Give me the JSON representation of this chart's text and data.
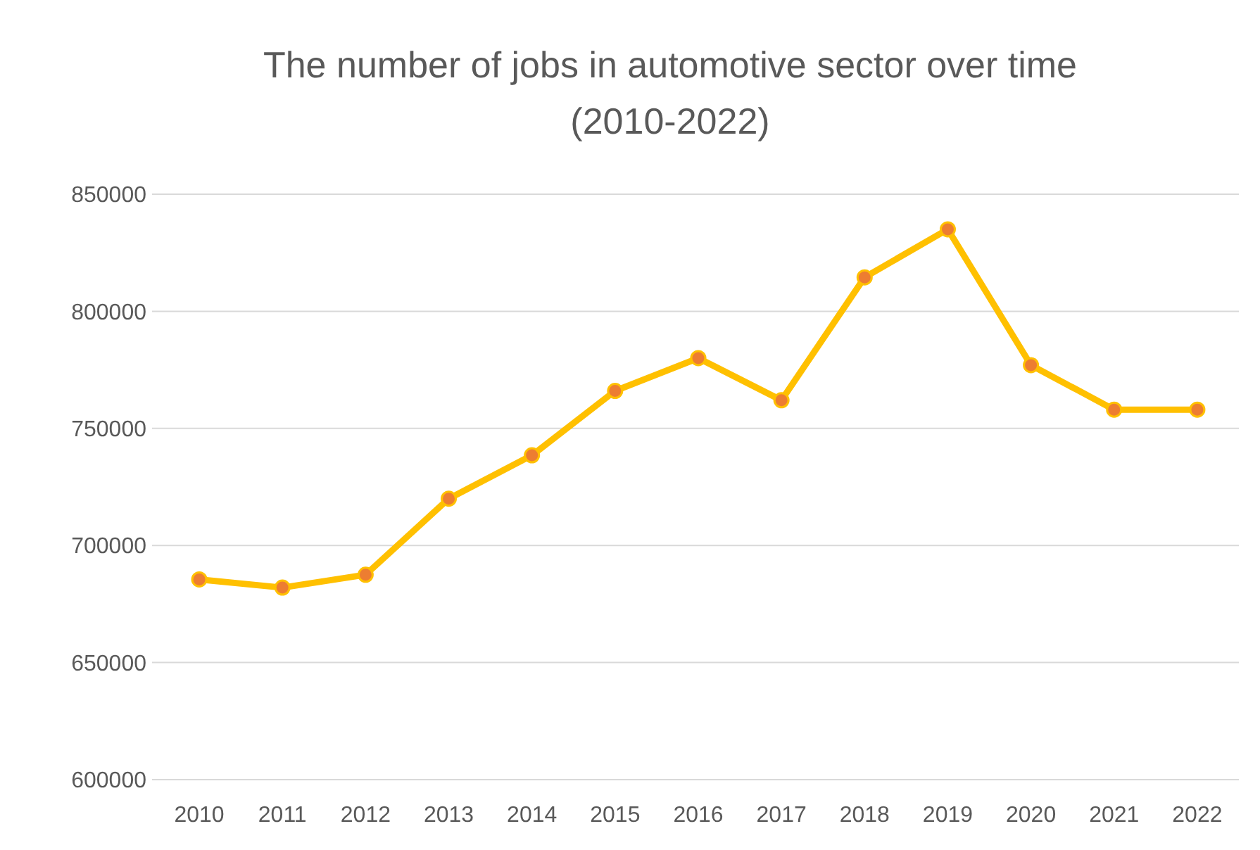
{
  "chart_data": {
    "type": "line",
    "title": "The number of jobs in automotive sector over time\n(2010-2022)",
    "categories": [
      "2010",
      "2011",
      "2012",
      "2013",
      "2014",
      "2015",
      "2016",
      "2017",
      "2018",
      "2019",
      "2020",
      "2021",
      "2022"
    ],
    "series": [
      {
        "color": "#ffc000",
        "values": [
          685500,
          682000,
          687500,
          720000,
          738500,
          766000,
          780000,
          762000,
          814500,
          835000,
          777000,
          758000,
          758000
        ]
      }
    ],
    "ylim": [
      600000,
      850000
    ],
    "yticks": [
      600000,
      650000,
      700000,
      750000,
      800000,
      850000
    ],
    "grid": "y",
    "marker": "circle",
    "line_style": "solid"
  }
}
